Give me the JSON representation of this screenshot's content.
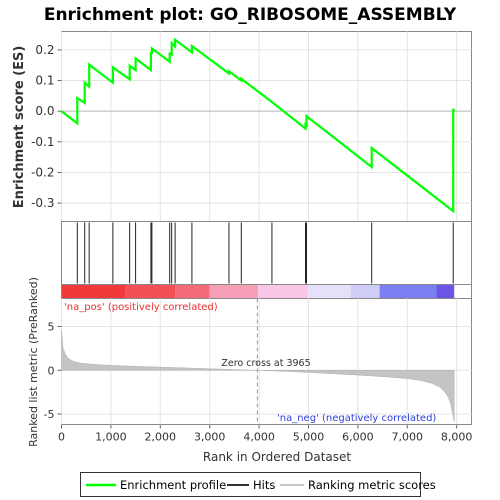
{
  "chart_data": {
    "type": "line",
    "title": "Enrichment plot: GO_RIBOSOME_ASSEMBLY",
    "xlabel": "Rank in Ordered Dataset",
    "es_ylabel": "Enrichment score (ES)",
    "metric_ylabel": "Ranked list metric (PreRanked)",
    "xlim": [
      0,
      8300
    ],
    "x_ticks": [
      0,
      1000,
      2000,
      3000,
      4000,
      5000,
      6000,
      7000,
      8000
    ],
    "es_ylim": [
      -0.36,
      0.26
    ],
    "es_ticks": [
      0.2,
      0.1,
      0.0,
      -0.1,
      -0.2,
      -0.3
    ],
    "metric_ylim": [
      -6.2,
      8.2
    ],
    "metric_ticks": [
      5,
      0,
      -5
    ],
    "pos_label": "'na_pos' (positively correlated)",
    "neg_label": "'na_neg' (negatively correlated)",
    "zero_cross_label": "Zero cross at 3965",
    "zero_cross": 3965,
    "n_genes": 7950,
    "hits": [
      320,
      470,
      560,
      1040,
      1380,
      1500,
      1810,
      1830,
      2190,
      2230,
      2300,
      2640,
      3390,
      3640,
      4260,
      4940,
      4960,
      6280,
      7930
    ],
    "enrichment_profile": {
      "x": [
        0,
        320,
        320,
        470,
        470,
        560,
        560,
        1040,
        1040,
        1380,
        1380,
        1500,
        1500,
        1810,
        1810,
        1830,
        1830,
        2190,
        2190,
        2230,
        2230,
        2300,
        2300,
        2640,
        2640,
        3390,
        3390,
        3640,
        3640,
        4260,
        4260,
        4940,
        4940,
        4960,
        4960,
        6280,
        6280,
        7930,
        7930,
        7950
      ],
      "y": [
        0.0,
        -0.04,
        0.043,
        0.027,
        0.093,
        0.08,
        0.152,
        0.093,
        0.143,
        0.104,
        0.148,
        0.134,
        0.172,
        0.134,
        0.19,
        0.19,
        0.205,
        0.161,
        0.188,
        0.185,
        0.222,
        0.211,
        0.233,
        0.192,
        0.213,
        0.123,
        0.13,
        0.1,
        0.106,
        0.03,
        0.03,
        -0.057,
        -0.043,
        -0.046,
        -0.016,
        -0.182,
        -0.12,
        -0.326,
        0.007,
        0.0
      ]
    },
    "metric_curve": {
      "rank": [
        0,
        30,
        80,
        150,
        250,
        400,
        600,
        800,
        1000,
        1500,
        2000,
        2500,
        3000,
        3500,
        3965,
        4500,
        5000,
        5500,
        6000,
        6500,
        7000,
        7300,
        7500,
        7650,
        7750,
        7820,
        7870,
        7900,
        7930,
        7950
      ],
      "value": [
        4.6,
        2.6,
        1.8,
        1.3,
        1.0,
        0.8,
        0.7,
        0.62,
        0.55,
        0.45,
        0.36,
        0.27,
        0.18,
        0.08,
        0.0,
        -0.12,
        -0.25,
        -0.4,
        -0.55,
        -0.72,
        -0.95,
        -1.2,
        -1.5,
        -1.9,
        -2.4,
        -3.0,
        -3.7,
        -4.5,
        -5.3,
        -5.9
      ]
    },
    "heat_colors": [
      "#f03a3a",
      "#f24f56",
      "#f46a78",
      "#f79fb6",
      "#fac6e6",
      "#e6e0fb",
      "#cfccf7",
      "#7b7ff1",
      "#6a55e4",
      "#3b1acb"
    ],
    "heat_breaks": [
      0,
      1300,
      2300,
      3000,
      3980,
      4980,
      5860,
      6440,
      7590,
      7950
    ],
    "legend": {
      "items": [
        {
          "label": "Enrichment profile",
          "color": "#00ff00"
        },
        {
          "label": "Hits",
          "color": "#333333"
        },
        {
          "label": "Ranking metric scores",
          "color": "#c8c8c8"
        }
      ]
    }
  }
}
